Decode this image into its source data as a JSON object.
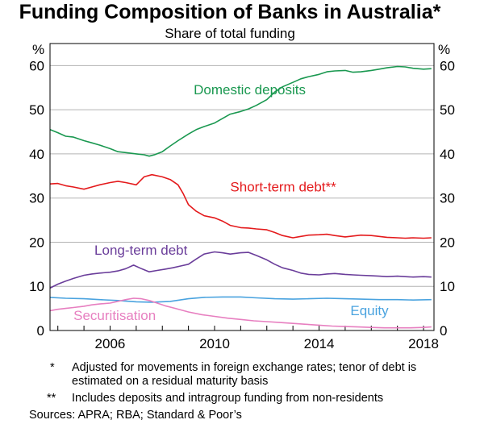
{
  "chart_data": {
    "type": "line",
    "title": "Funding Composition of Banks in Australia*",
    "subtitle": "Share of total funding",
    "unit_left": "%",
    "unit_right": "%",
    "ylim": [
      0,
      65
    ],
    "y_ticks": [
      0,
      10,
      20,
      30,
      40,
      50,
      60
    ],
    "xlim": [
      2003.7,
      2018.4
    ],
    "x_ticks": [
      2006,
      2010,
      2014,
      2018
    ],
    "grid": true,
    "series": [
      {
        "name": "Domestic deposits",
        "color": "#1a9850",
        "label_pos": [
          2009.2,
          53.5
        ],
        "points": [
          [
            2003.7,
            45.5
          ],
          [
            2004.0,
            44.8
          ],
          [
            2004.3,
            44.0
          ],
          [
            2004.6,
            43.8
          ],
          [
            2005.0,
            43.0
          ],
          [
            2005.3,
            42.5
          ],
          [
            2005.6,
            42.0
          ],
          [
            2006.0,
            41.2
          ],
          [
            2006.3,
            40.5
          ],
          [
            2006.6,
            40.3
          ],
          [
            2007.0,
            40.0
          ],
          [
            2007.3,
            39.8
          ],
          [
            2007.5,
            39.5
          ],
          [
            2007.7,
            39.8
          ],
          [
            2008.0,
            40.5
          ],
          [
            2008.3,
            41.8
          ],
          [
            2008.6,
            43.0
          ],
          [
            2009.0,
            44.5
          ],
          [
            2009.3,
            45.5
          ],
          [
            2009.6,
            46.2
          ],
          [
            2010.0,
            47.0
          ],
          [
            2010.3,
            48.0
          ],
          [
            2010.6,
            49.0
          ],
          [
            2011.0,
            49.6
          ],
          [
            2011.3,
            50.2
          ],
          [
            2011.6,
            51.0
          ],
          [
            2012.0,
            52.3
          ],
          [
            2012.3,
            54.0
          ],
          [
            2012.6,
            55.2
          ],
          [
            2013.0,
            56.2
          ],
          [
            2013.3,
            57.0
          ],
          [
            2013.6,
            57.5
          ],
          [
            2014.0,
            58.0
          ],
          [
            2014.3,
            58.6
          ],
          [
            2014.6,
            58.8
          ],
          [
            2015.0,
            58.9
          ],
          [
            2015.3,
            58.5
          ],
          [
            2015.6,
            58.6
          ],
          [
            2016.0,
            58.9
          ],
          [
            2016.3,
            59.2
          ],
          [
            2016.6,
            59.5
          ],
          [
            2017.0,
            59.8
          ],
          [
            2017.3,
            59.7
          ],
          [
            2017.6,
            59.4
          ],
          [
            2018.0,
            59.2
          ],
          [
            2018.3,
            59.3
          ]
        ]
      },
      {
        "name": "Short-term debt**",
        "color": "#e41a1c",
        "label_pos": [
          2010.6,
          31.5
        ],
        "points": [
          [
            2003.7,
            33.2
          ],
          [
            2004.0,
            33.3
          ],
          [
            2004.3,
            32.8
          ],
          [
            2004.6,
            32.5
          ],
          [
            2005.0,
            32.0
          ],
          [
            2005.3,
            32.5
          ],
          [
            2005.6,
            33.0
          ],
          [
            2006.0,
            33.5
          ],
          [
            2006.3,
            33.8
          ],
          [
            2006.6,
            33.5
          ],
          [
            2007.0,
            33.0
          ],
          [
            2007.3,
            34.8
          ],
          [
            2007.6,
            35.3
          ],
          [
            2008.0,
            34.8
          ],
          [
            2008.3,
            34.2
          ],
          [
            2008.6,
            33.0
          ],
          [
            2008.8,
            31.0
          ],
          [
            2009.0,
            28.5
          ],
          [
            2009.3,
            27.0
          ],
          [
            2009.6,
            26.0
          ],
          [
            2010.0,
            25.5
          ],
          [
            2010.3,
            24.8
          ],
          [
            2010.6,
            23.8
          ],
          [
            2011.0,
            23.3
          ],
          [
            2011.3,
            23.2
          ],
          [
            2011.6,
            23.0
          ],
          [
            2012.0,
            22.8
          ],
          [
            2012.3,
            22.2
          ],
          [
            2012.6,
            21.5
          ],
          [
            2013.0,
            21.0
          ],
          [
            2013.3,
            21.3
          ],
          [
            2013.6,
            21.6
          ],
          [
            2014.0,
            21.7
          ],
          [
            2014.3,
            21.8
          ],
          [
            2014.6,
            21.5
          ],
          [
            2015.0,
            21.2
          ],
          [
            2015.3,
            21.4
          ],
          [
            2015.6,
            21.6
          ],
          [
            2016.0,
            21.5
          ],
          [
            2016.3,
            21.3
          ],
          [
            2016.6,
            21.1
          ],
          [
            2017.0,
            21.0
          ],
          [
            2017.3,
            20.9
          ],
          [
            2017.6,
            21.0
          ],
          [
            2018.0,
            20.9
          ],
          [
            2018.3,
            21.0
          ]
        ]
      },
      {
        "name": "Long-term debt",
        "color": "#6a3d9a",
        "label_pos": [
          2005.4,
          17.2
        ],
        "points": [
          [
            2003.7,
            9.6
          ],
          [
            2004.0,
            10.5
          ],
          [
            2004.3,
            11.2
          ],
          [
            2004.6,
            11.8
          ],
          [
            2005.0,
            12.5
          ],
          [
            2005.3,
            12.8
          ],
          [
            2005.6,
            13.0
          ],
          [
            2006.0,
            13.2
          ],
          [
            2006.3,
            13.5
          ],
          [
            2006.6,
            14.0
          ],
          [
            2006.9,
            14.8
          ],
          [
            2007.2,
            14.0
          ],
          [
            2007.5,
            13.3
          ],
          [
            2007.8,
            13.6
          ],
          [
            2008.1,
            13.9
          ],
          [
            2008.4,
            14.2
          ],
          [
            2008.7,
            14.6
          ],
          [
            2009.0,
            15.0
          ],
          [
            2009.3,
            16.2
          ],
          [
            2009.6,
            17.3
          ],
          [
            2010.0,
            17.8
          ],
          [
            2010.3,
            17.6
          ],
          [
            2010.6,
            17.3
          ],
          [
            2011.0,
            17.6
          ],
          [
            2011.3,
            17.7
          ],
          [
            2011.6,
            17.0
          ],
          [
            2012.0,
            16.0
          ],
          [
            2012.3,
            15.0
          ],
          [
            2012.6,
            14.2
          ],
          [
            2013.0,
            13.6
          ],
          [
            2013.3,
            13.0
          ],
          [
            2013.6,
            12.7
          ],
          [
            2014.0,
            12.6
          ],
          [
            2014.3,
            12.8
          ],
          [
            2014.6,
            12.9
          ],
          [
            2015.0,
            12.7
          ],
          [
            2015.3,
            12.6
          ],
          [
            2015.6,
            12.5
          ],
          [
            2016.0,
            12.4
          ],
          [
            2016.3,
            12.3
          ],
          [
            2016.6,
            12.2
          ],
          [
            2017.0,
            12.3
          ],
          [
            2017.3,
            12.2
          ],
          [
            2017.6,
            12.1
          ],
          [
            2018.0,
            12.2
          ],
          [
            2018.3,
            12.1
          ]
        ]
      },
      {
        "name": "Equity",
        "color": "#4aa3df",
        "label_pos": [
          2015.2,
          3.5
        ],
        "points": [
          [
            2003.7,
            7.5
          ],
          [
            2004.3,
            7.3
          ],
          [
            2005.0,
            7.2
          ],
          [
            2005.6,
            7.0
          ],
          [
            2006.3,
            6.8
          ],
          [
            2007.0,
            6.5
          ],
          [
            2007.6,
            6.4
          ],
          [
            2008.3,
            6.6
          ],
          [
            2009.0,
            7.2
          ],
          [
            2009.6,
            7.5
          ],
          [
            2010.3,
            7.6
          ],
          [
            2011.0,
            7.6
          ],
          [
            2011.6,
            7.4
          ],
          [
            2012.3,
            7.2
          ],
          [
            2013.0,
            7.1
          ],
          [
            2013.6,
            7.2
          ],
          [
            2014.3,
            7.3
          ],
          [
            2015.0,
            7.2
          ],
          [
            2015.6,
            7.1
          ],
          [
            2016.3,
            7.0
          ],
          [
            2017.0,
            7.0
          ],
          [
            2017.6,
            6.9
          ],
          [
            2018.3,
            7.0
          ]
        ]
      },
      {
        "name": "Securitisation",
        "color": "#e77fc0",
        "label_pos": [
          2004.6,
          2.4
        ],
        "points": [
          [
            2003.7,
            4.5
          ],
          [
            2004.0,
            4.8
          ],
          [
            2004.3,
            5.0
          ],
          [
            2004.6,
            5.2
          ],
          [
            2005.0,
            5.5
          ],
          [
            2005.3,
            5.8
          ],
          [
            2005.6,
            6.0
          ],
          [
            2006.0,
            6.2
          ],
          [
            2006.3,
            6.6
          ],
          [
            2006.6,
            7.0
          ],
          [
            2006.9,
            7.3
          ],
          [
            2007.2,
            7.2
          ],
          [
            2007.5,
            6.8
          ],
          [
            2007.8,
            6.2
          ],
          [
            2008.1,
            5.6
          ],
          [
            2008.5,
            5.0
          ],
          [
            2009.0,
            4.2
          ],
          [
            2009.5,
            3.6
          ],
          [
            2010.0,
            3.2
          ],
          [
            2010.5,
            2.8
          ],
          [
            2011.0,
            2.5
          ],
          [
            2011.5,
            2.2
          ],
          [
            2012.0,
            2.0
          ],
          [
            2012.5,
            1.8
          ],
          [
            2013.0,
            1.6
          ],
          [
            2013.5,
            1.4
          ],
          [
            2014.0,
            1.2
          ],
          [
            2014.5,
            1.0
          ],
          [
            2015.0,
            0.9
          ],
          [
            2015.5,
            0.8
          ],
          [
            2016.0,
            0.7
          ],
          [
            2016.5,
            0.6
          ],
          [
            2017.0,
            0.6
          ],
          [
            2017.5,
            0.6
          ],
          [
            2018.0,
            0.7
          ],
          [
            2018.3,
            0.8
          ]
        ]
      }
    ]
  },
  "notes": [
    {
      "marker": "*",
      "text": "Adjusted for movements in foreign exchange rates; tenor of debt is",
      "text2": "estimated on a residual maturity basis"
    },
    {
      "marker": "**",
      "text": "Includes deposits and intragroup funding from non-residents"
    }
  ],
  "sources": "Sources: APRA; RBA; Standard & Poor’s"
}
